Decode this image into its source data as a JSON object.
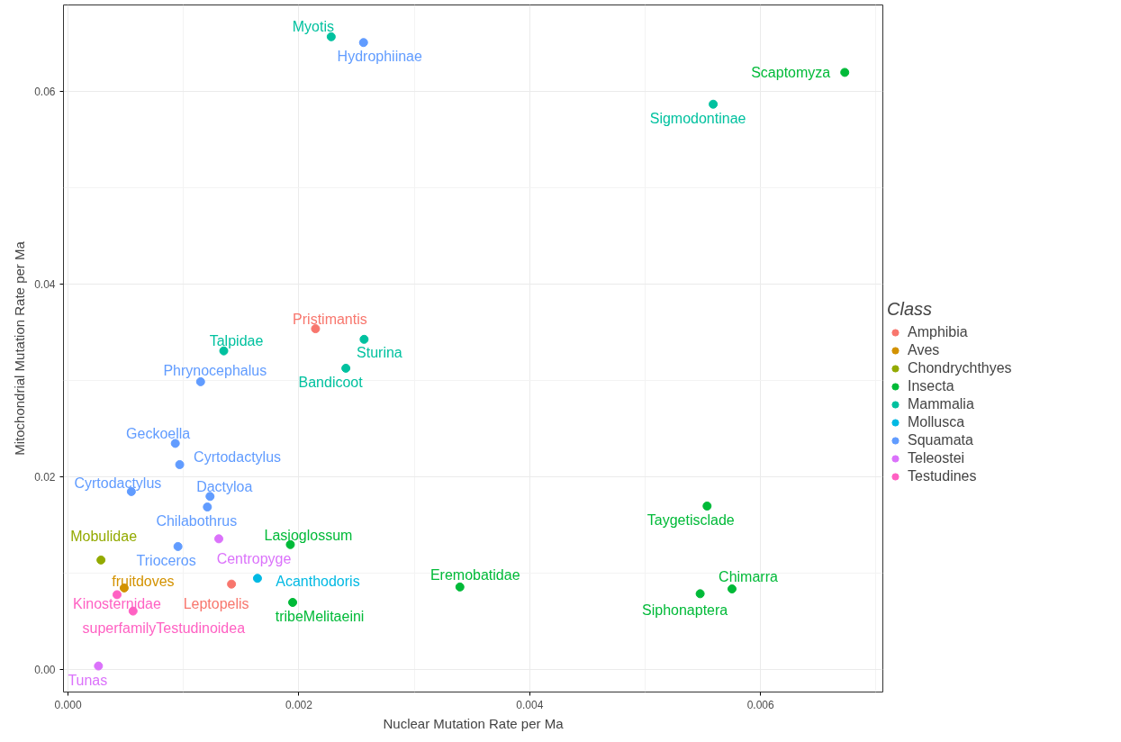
{
  "chart_data": {
    "type": "scatter",
    "xlabel": "Nuclear Mutation Rate per Ma",
    "ylabel": "Mitochondrial Mutation Rate per Ma",
    "legend_title": "Class",
    "xlim": [
      -4e-05,
      0.00706
    ],
    "ylim": [
      -0.0023,
      0.069
    ],
    "xticks": [
      {
        "value": 0,
        "label": "0.000"
      },
      0.002,
      0.004,
      0.006
    ],
    "yticks": [
      {
        "value": 0,
        "label": "0.00"
      },
      {
        "value": 0.02,
        "label": "0.02"
      },
      {
        "value": 0.04,
        "label": "0.04"
      },
      {
        "value": 0.06,
        "label": "0.06"
      }
    ],
    "grid": true,
    "legend": "right",
    "marker": "circle",
    "series": [
      {
        "name": "Amphibia",
        "color": "#f8766d",
        "x": [
          0.002144,
          0.001416
        ],
        "values": [
          0.0354,
          0.0089
        ]
      },
      {
        "name": "Aves",
        "color": "#d39200",
        "x": [
          0.000486
        ],
        "values": [
          0.0085
        ]
      },
      {
        "name": "Chondrychthyes",
        "color": "#93aa00",
        "x": [
          0.000285
        ],
        "values": [
          0.0114
        ]
      },
      {
        "name": "Insecta",
        "color": "#00ba38",
        "x": [
          0.00673,
          0.001926,
          0.003395,
          0.005753,
          0.005477,
          0.001946,
          0.005537
        ],
        "values": [
          0.062,
          0.013,
          0.0086,
          0.0084,
          0.0079,
          0.007,
          0.017
        ]
      },
      {
        "name": "Mammalia",
        "color": "#00c19f",
        "x": [
          0.00228,
          0.00559,
          0.002565,
          0.001349,
          0.002407
        ],
        "values": [
          0.0657,
          0.0587,
          0.0343,
          0.0331,
          0.0313
        ]
      },
      {
        "name": "Mollusca",
        "color": "#00b9e3",
        "x": [
          0.001641
        ],
        "values": [
          0.0095
        ]
      },
      {
        "name": "Squamata",
        "color": "#619cff",
        "x": [
          0.00256,
          0.001148,
          0.000929,
          0.000967,
          0.000548,
          0.00123,
          0.001207,
          0.000952
        ],
        "values": [
          0.0651,
          0.0299,
          0.0235,
          0.0213,
          0.0185,
          0.018,
          0.0169,
          0.0128
        ]
      },
      {
        "name": "Teleostei",
        "color": "#db72fb",
        "x": [
          0.001306,
          0.000263
        ],
        "values": [
          0.0136,
          0.0004
        ]
      },
      {
        "name": "Testudines",
        "color": "#ff61c3",
        "x": [
          0.000424,
          0.000563
        ],
        "values": [
          0.0078,
          0.0061
        ]
      }
    ],
    "annotations": [
      {
        "text": "Myotis",
        "x": 0.00228,
        "y": 0.0657
      },
      {
        "text": "Hydrophiinae",
        "x": 0.00256,
        "y": 0.0651
      },
      {
        "text": "Scaptomyza",
        "x": 0.00673,
        "y": 0.062
      },
      {
        "text": "Sigmodontinae",
        "x": 0.00559,
        "y": 0.0587
      },
      {
        "text": "Pristimantis",
        "x": 0.002144,
        "y": 0.0354
      },
      {
        "text": "Sturina",
        "x": 0.002565,
        "y": 0.0343
      },
      {
        "text": "Talpidae",
        "x": 0.001349,
        "y": 0.0331
      },
      {
        "text": "Bandicoot",
        "x": 0.002407,
        "y": 0.0313
      },
      {
        "text": "Phrynocephalus",
        "x": 0.001148,
        "y": 0.0299
      },
      {
        "text": "Geckoella",
        "x": 0.000929,
        "y": 0.0235
      },
      {
        "text": "Cyrtodactylus",
        "x": 0.000967,
        "y": 0.0213
      },
      {
        "text": "Cyrtodactylus",
        "x": 0.000548,
        "y": 0.0185
      },
      {
        "text": "Dactyloa",
        "x": 0.00123,
        "y": 0.018
      },
      {
        "text": "Chilabothrus",
        "x": 0.001207,
        "y": 0.0169
      },
      {
        "text": "Taygetisclade",
        "x": 0.005537,
        "y": 0.017
      },
      {
        "text": "Mobulidae",
        "x": 0.000285,
        "y": 0.0114
      },
      {
        "text": "Centropyge",
        "x": 0.001306,
        "y": 0.0136
      },
      {
        "text": "Lasioglossum",
        "x": 0.001926,
        "y": 0.013
      },
      {
        "text": "Trioceros",
        "x": 0.000952,
        "y": 0.0128
      },
      {
        "text": "Acanthodoris",
        "x": 0.001641,
        "y": 0.0095
      },
      {
        "text": "fruitdoves",
        "x": 0.000486,
        "y": 0.0085
      },
      {
        "text": "Leptopelis",
        "x": 0.001416,
        "y": 0.0089
      },
      {
        "text": "Eremobatidae",
        "x": 0.003395,
        "y": 0.0086
      },
      {
        "text": "Chimarra",
        "x": 0.005753,
        "y": 0.0084
      },
      {
        "text": "Siphonaptera",
        "x": 0.005477,
        "y": 0.0079
      },
      {
        "text": "tribeMelitaeini",
        "x": 0.001946,
        "y": 0.007
      },
      {
        "text": "Kinosternidae",
        "x": 0.000424,
        "y": 0.0078
      },
      {
        "text": "superfamilyTestudinoidea",
        "x": 0.000563,
        "y": 0.0061
      },
      {
        "text": "Tunas",
        "x": 0.000263,
        "y": 0.0004
      }
    ]
  }
}
